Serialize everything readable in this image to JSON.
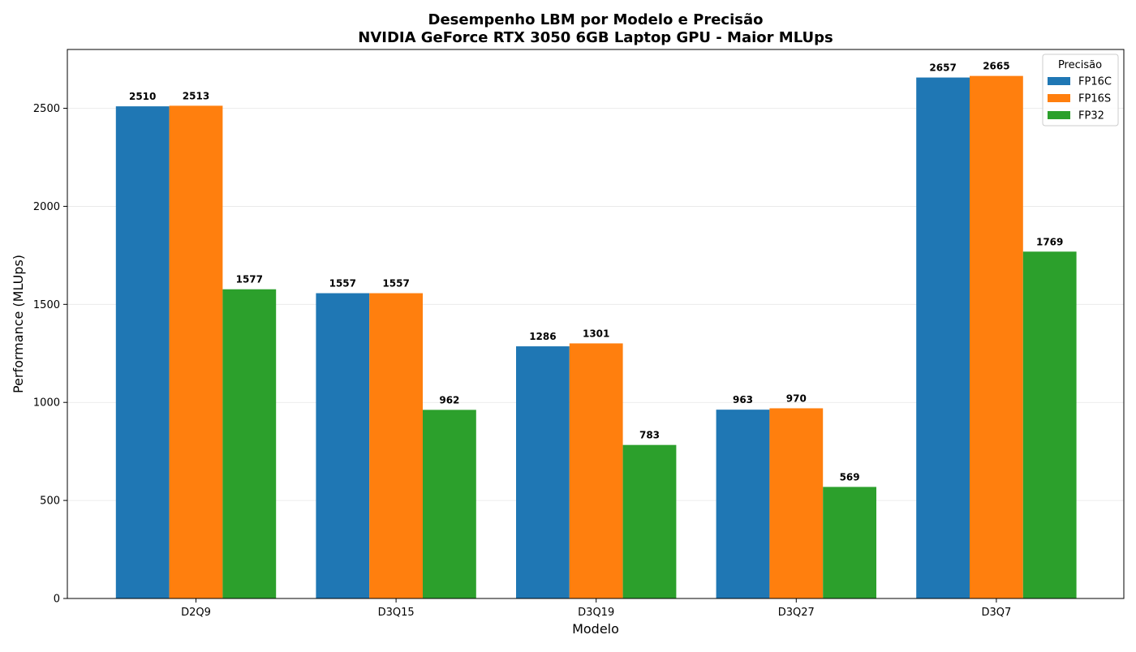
{
  "chart_data": {
    "type": "bar",
    "title": "Desempenho LBM por Modelo e Precisão",
    "subtitle": "NVIDIA GeForce RTX 3050 6GB Laptop GPU - Maior MLUps",
    "xlabel": "Modelo",
    "ylabel": "Performance (MLUps)",
    "ylim": [
      0,
      2800
    ],
    "yticks": [
      0,
      500,
      1000,
      1500,
      2000,
      2500
    ],
    "grid": "y",
    "legend": {
      "title": "Precisão",
      "placement": "top-right"
    },
    "categories": [
      "D2Q9",
      "D3Q15",
      "D3Q19",
      "D3Q27",
      "D3Q7"
    ],
    "series": [
      {
        "name": "FP16C",
        "color": "#1f77b4",
        "values": [
          2510,
          1557,
          1286,
          963,
          2657
        ]
      },
      {
        "name": "FP16S",
        "color": "#ff7f0e",
        "values": [
          2513,
          1557,
          1301,
          970,
          2665
        ]
      },
      {
        "name": "FP32",
        "color": "#2ca02c",
        "values": [
          1577,
          962,
          783,
          569,
          1769
        ]
      }
    ]
  }
}
